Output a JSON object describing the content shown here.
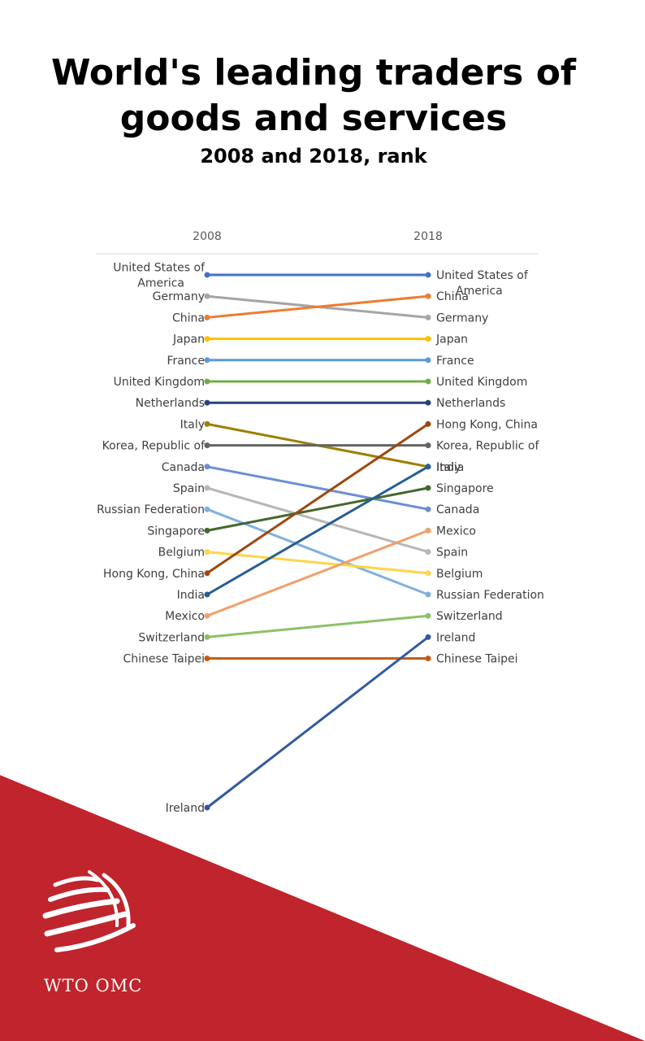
{
  "title": "World's leading traders of goods and services",
  "subtitle": "2008 and 2018, rank",
  "logo_text": "WTO OMC",
  "brand_color": "#c0242c",
  "chart_data": {
    "type": "line",
    "chart_kind": "slope",
    "x": [
      "2008",
      "2018"
    ],
    "y_scale": "rank, 1 at top",
    "series": [
      {
        "name": "United States of America",
        "values": [
          1,
          1
        ],
        "color": "#4472c4"
      },
      {
        "name": "Germany",
        "values": [
          2,
          3
        ],
        "color": "#a5a5a5"
      },
      {
        "name": "China",
        "values": [
          3,
          2
        ],
        "color": "#ed7d31"
      },
      {
        "name": "Japan",
        "values": [
          4,
          4
        ],
        "color": "#ffc000"
      },
      {
        "name": "France",
        "values": [
          5,
          5
        ],
        "color": "#5b9bd5"
      },
      {
        "name": "United Kingdom",
        "values": [
          6,
          6
        ],
        "color": "#70ad47"
      },
      {
        "name": "Netherlands",
        "values": [
          7,
          7
        ],
        "color": "#264478"
      },
      {
        "name": "Italy",
        "values": [
          8,
          10
        ],
        "color": "#9e7f00"
      },
      {
        "name": "Korea, Republic of",
        "values": [
          9,
          9
        ],
        "color": "#636363"
      },
      {
        "name": "Canada",
        "values": [
          10,
          12
        ],
        "color": "#6a8fd1"
      },
      {
        "name": "Spain",
        "values": [
          11,
          14
        ],
        "color": "#b7b7b7"
      },
      {
        "name": "Russian Federation",
        "values": [
          12,
          16
        ],
        "color": "#7fb1de"
      },
      {
        "name": "Singapore",
        "values": [
          13,
          11
        ],
        "color": "#43682b"
      },
      {
        "name": "Belgium",
        "values": [
          14,
          15
        ],
        "color": "#ffd54a"
      },
      {
        "name": "Hong Kong, China",
        "values": [
          15,
          8
        ],
        "color": "#9e480e"
      },
      {
        "name": "India",
        "values": [
          16,
          10
        ],
        "color": "#255e91"
      },
      {
        "name": "Mexico",
        "values": [
          17,
          13
        ],
        "color": "#f1a06b"
      },
      {
        "name": "Switzerland",
        "values": [
          18,
          17
        ],
        "color": "#8cc168"
      },
      {
        "name": "Chinese Taipei",
        "values": [
          19,
          19
        ],
        "color": "#c55a11"
      },
      {
        "name": "Ireland",
        "values": [
          26,
          18
        ],
        "color": "#335aa1"
      }
    ]
  }
}
